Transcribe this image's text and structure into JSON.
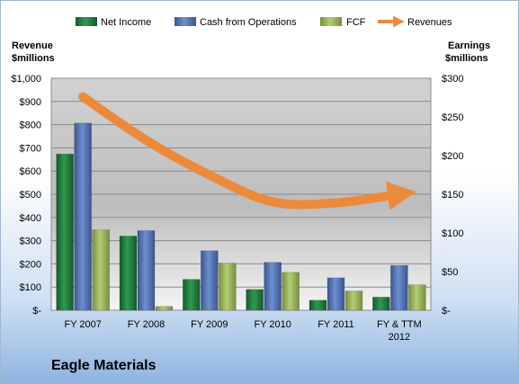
{
  "company_name": "Eagle Materials",
  "chart_data": {
    "type": "bar",
    "categories": [
      "FY 2007",
      "FY 2008",
      "FY 2009",
      "FY 2010",
      "FY 2011",
      "FY & TTM 2012"
    ],
    "series": [
      {
        "name": "Net Income",
        "type": "bar",
        "axis": "right",
        "color": "#1e7a3a",
        "values": [
          202,
          96,
          40,
          27,
          13,
          17
        ]
      },
      {
        "name": "Cash from Operations",
        "type": "bar",
        "axis": "right",
        "color": "#4c6eb0",
        "values": [
          242,
          103,
          77,
          62,
          42,
          58
        ]
      },
      {
        "name": "FCF",
        "type": "bar",
        "axis": "right",
        "color": "#98b656",
        "values": [
          104,
          5,
          61,
          49,
          25,
          33
        ]
      },
      {
        "name": "Revenues",
        "type": "line",
        "axis": "left",
        "color": "#ec8a3c",
        "values": [
          920,
          733,
          583,
          467,
          463,
          500
        ]
      }
    ],
    "y_left": {
      "label_lines": [
        "Revenue",
        "$millions"
      ],
      "range": [
        0,
        1000
      ],
      "ticks": [
        0,
        100,
        200,
        300,
        400,
        500,
        600,
        700,
        800,
        900,
        1000
      ],
      "tick_labels": [
        "$-",
        "$100",
        "$200",
        "$300",
        "$400",
        "$500",
        "$600",
        "$700",
        "$800",
        "$900",
        "$1,000"
      ]
    },
    "y_right": {
      "label_lines": [
        "Earnings",
        "$millions"
      ],
      "range": [
        0,
        300
      ],
      "ticks": [
        0,
        50,
        100,
        150,
        200,
        250,
        300
      ],
      "tick_labels": [
        "$-",
        "$50",
        "$100",
        "$150",
        "$200",
        "$250",
        "$300"
      ]
    },
    "legend_position": "top",
    "grid": true
  }
}
